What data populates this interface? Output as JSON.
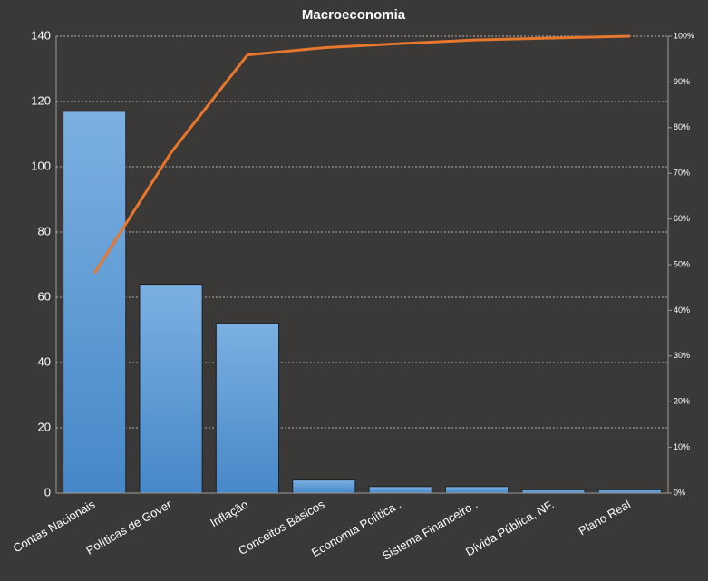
{
  "chart_data": {
    "type": "pareto",
    "title": "Macroeconomia",
    "categories": [
      "Contas Nacionais",
      "Políticas de Gover",
      "Inflação",
      "Conceitos Básicos",
      "Economia Política .",
      "Sistema Financeiro .",
      "Dívida Pública, NF.",
      "Plano Real"
    ],
    "series": [
      {
        "type": "bar",
        "color": "#5598d8",
        "values": [
          117,
          64,
          52,
          4,
          2,
          2,
          1,
          1
        ]
      },
      {
        "type": "line",
        "color": "#e8772e",
        "axis": "y2",
        "values": [
          48.1,
          74.5,
          95.9,
          97.5,
          98.4,
          99.2,
          99.6,
          100
        ]
      }
    ],
    "ylim": [
      0,
      140
    ],
    "yticks": [
      0,
      20,
      40,
      60,
      80,
      100,
      120,
      140
    ],
    "y2lim": [
      0,
      100
    ],
    "y2ticks": [
      {
        "value": 0,
        "label": "0%"
      },
      {
        "value": 10,
        "label": "10%"
      },
      {
        "value": 20,
        "label": "20%"
      },
      {
        "value": 30,
        "label": "30%"
      },
      {
        "value": 40,
        "label": "40%"
      },
      {
        "value": 50,
        "label": "50%"
      },
      {
        "value": 60,
        "label": "60%"
      },
      {
        "value": 70,
        "label": "70%"
      },
      {
        "value": 80,
        "label": "80%"
      },
      {
        "value": 90,
        "label": "90%"
      },
      {
        "value": 100,
        "label": "100%"
      }
    ],
    "grid": true
  }
}
